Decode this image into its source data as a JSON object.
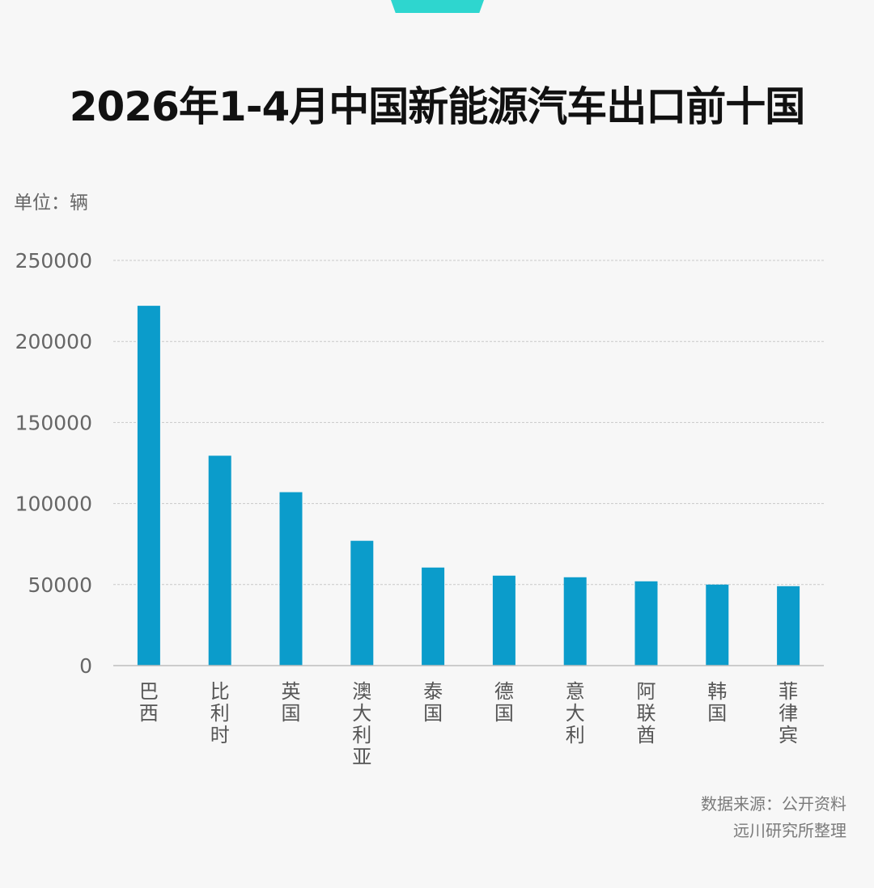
{
  "page": {
    "title": "2026年1-4月中国新能源汽车出口前十国",
    "unit": "单位：辆",
    "source_line1": "数据来源：公开资料",
    "source_line2": "远川研究所整理",
    "accent_color": "#2ed6cf",
    "bar_color": "#0b9ccb",
    "background_color": "#f7f7f7"
  },
  "chart_data": {
    "type": "bar",
    "categories": [
      "巴西",
      "比利时",
      "英国",
      "澳大利亚",
      "泰国",
      "德国",
      "意大利",
      "阿联酋",
      "韩国",
      "菲律宾"
    ],
    "values": [
      222000,
      129500,
      107000,
      77000,
      60500,
      55500,
      54500,
      52000,
      50000,
      49000
    ],
    "ylim": [
      0,
      250000
    ],
    "yticks": [
      0,
      50000,
      100000,
      150000,
      200000,
      250000
    ],
    "grid": true,
    "title": "2026年1-4月中国新能源汽车出口前十国",
    "xlabel": "",
    "ylabel": "单位：辆"
  }
}
